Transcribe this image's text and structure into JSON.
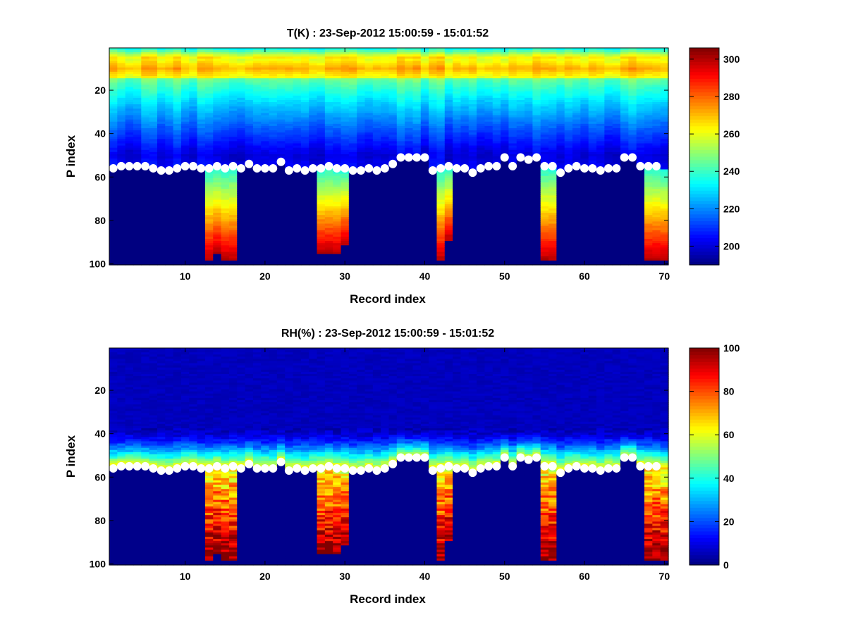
{
  "chart_data": [
    {
      "type": "heatmap",
      "title": "T(K) : 23-Sep-2012 15:00:59 - 15:01:52",
      "xlabel": "Record index",
      "ylabel": "P index",
      "xlim": [
        0.5,
        70.5
      ],
      "ylim": [
        100.5,
        0.5
      ],
      "xticks": [
        10,
        20,
        30,
        40,
        50,
        60,
        70
      ],
      "yticks": [
        20,
        40,
        60,
        80,
        100
      ],
      "colorbar": {
        "colormap": "jet",
        "range": [
          190,
          306
        ],
        "ticks": [
          200,
          220,
          240,
          260,
          280,
          300
        ]
      },
      "grid": false,
      "rows": 100,
      "cols": 70,
      "profile": {
        "top_level_K": 230,
        "warm_band_rows": [
          6,
          14
        ],
        "warm_band_peak_K": 272,
        "upper_decay_rows": [
          14,
          50
        ],
        "upper_low_K": 201,
        "lower_column_gradient_K": [
          236,
          300
        ]
      },
      "active_columns": [
        {
          "cols": [
            13,
            16
          ],
          "bottom_rows": [
            98,
            95,
            98,
            98
          ]
        },
        {
          "cols": [
            27,
            30
          ],
          "bottom_rows": [
            95,
            95,
            95,
            91
          ]
        },
        {
          "cols": [
            42,
            43
          ],
          "bottom_rows": [
            98,
            89
          ]
        },
        {
          "cols": [
            55,
            56
          ],
          "bottom_rows": [
            98,
            98
          ]
        },
        {
          "cols": [
            68,
            70
          ],
          "bottom_rows": [
            98,
            98,
            98
          ]
        }
      ],
      "marker_rows": [
        56,
        55,
        55,
        55,
        55,
        56,
        57,
        57,
        56,
        55,
        55,
        56,
        56,
        55,
        56,
        55,
        56,
        54,
        56,
        56,
        56,
        53,
        57,
        56,
        57,
        56,
        56,
        55,
        56,
        56,
        57,
        57,
        56,
        57,
        56,
        54,
        51,
        51,
        51,
        51,
        57,
        56,
        55,
        56,
        56,
        58,
        56,
        55,
        55,
        51,
        55,
        51,
        52,
        51,
        55,
        55,
        58,
        56,
        55,
        56,
        56,
        57,
        56,
        56,
        51,
        51,
        55,
        55,
        55,
        null
      ]
    },
    {
      "type": "heatmap",
      "title": "RH(%) : 23-Sep-2012 15:00:59 - 15:01:52",
      "xlabel": "Record index",
      "ylabel": "P index",
      "xlim": [
        0.5,
        70.5
      ],
      "ylim": [
        100.5,
        0.5
      ],
      "xticks": [
        10,
        20,
        30,
        40,
        50,
        60,
        70
      ],
      "yticks": [
        20,
        40,
        60,
        80,
        100
      ],
      "colorbar": {
        "colormap": "jet",
        "range": [
          0,
          100
        ],
        "ticks": [
          0,
          20,
          40,
          60,
          80,
          100
        ]
      },
      "grid": false,
      "rows": 100,
      "cols": 70,
      "profile": {
        "upper_level_pct": 6,
        "moist_band_rows": [
          38,
          56
        ],
        "moist_band_peak_pct": 68,
        "column_values_pct": [
          60,
          100
        ]
      },
      "active_columns": [
        {
          "cols": [
            13,
            16
          ],
          "bottom_rows": [
            98,
            95,
            98,
            98
          ]
        },
        {
          "cols": [
            27,
            30
          ],
          "bottom_rows": [
            95,
            95,
            95,
            91
          ]
        },
        {
          "cols": [
            42,
            43
          ],
          "bottom_rows": [
            98,
            89
          ]
        },
        {
          "cols": [
            55,
            56
          ],
          "bottom_rows": [
            98,
            98
          ]
        },
        {
          "cols": [
            68,
            70
          ],
          "bottom_rows": [
            98,
            98,
            98
          ]
        }
      ],
      "marker_rows": [
        56,
        55,
        55,
        55,
        55,
        56,
        57,
        57,
        56,
        55,
        55,
        56,
        56,
        55,
        56,
        55,
        56,
        54,
        56,
        56,
        56,
        53,
        57,
        56,
        57,
        56,
        56,
        55,
        56,
        56,
        57,
        57,
        56,
        57,
        56,
        54,
        51,
        51,
        51,
        51,
        57,
        56,
        55,
        56,
        56,
        58,
        56,
        55,
        55,
        51,
        55,
        51,
        52,
        51,
        55,
        55,
        58,
        56,
        55,
        56,
        56,
        57,
        56,
        56,
        51,
        51,
        55,
        55,
        55,
        null
      ]
    }
  ]
}
